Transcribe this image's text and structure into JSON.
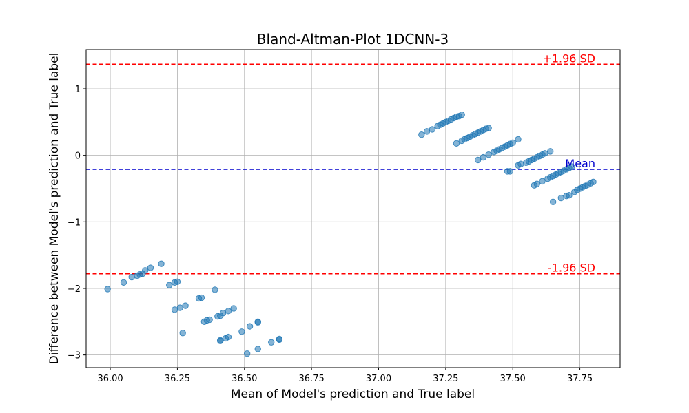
{
  "chart_data": {
    "type": "scatter",
    "title": "Bland-Altman-Plot 1DCNN-3",
    "xlabel": "Mean of Model's prediction and True label",
    "ylabel": "Difference between Model's prediction and True label",
    "xlim": [
      35.91,
      37.9
    ],
    "ylim": [
      -3.19,
      1.59
    ],
    "xticks": [
      36.0,
      36.25,
      36.5,
      36.75,
      37.0,
      37.25,
      37.5,
      37.75
    ],
    "xtick_labels": [
      "36.00",
      "36.25",
      "36.50",
      "36.75",
      "37.00",
      "37.25",
      "37.50",
      "37.75"
    ],
    "yticks": [
      -3,
      -2,
      -1,
      0,
      1
    ],
    "ytick_labels": [
      "−3",
      "−2",
      "−1",
      "0",
      "1"
    ],
    "grid": true,
    "marker_color": "#1f77b4",
    "reference_lines": [
      {
        "label": "+1.96 SD",
        "y": 1.37,
        "color": "#ff0000"
      },
      {
        "label": "Mean",
        "y": -0.21,
        "color": "#0000cd"
      },
      {
        "label": "-1.96 SD",
        "y": -1.78,
        "color": "#ff0000"
      }
    ],
    "points": [
      [
        35.99,
        -2.01
      ],
      [
        36.05,
        -1.91
      ],
      [
        36.08,
        -1.83
      ],
      [
        36.1,
        -1.81
      ],
      [
        36.11,
        -1.79
      ],
      [
        36.12,
        -1.78
      ],
      [
        36.13,
        -1.73
      ],
      [
        36.15,
        -1.69
      ],
      [
        36.19,
        -1.63
      ],
      [
        36.22,
        -1.95
      ],
      [
        36.24,
        -1.91
      ],
      [
        36.25,
        -1.9
      ],
      [
        36.24,
        -2.32
      ],
      [
        36.26,
        -2.29
      ],
      [
        36.28,
        -2.26
      ],
      [
        36.27,
        -2.67
      ],
      [
        36.33,
        -2.15
      ],
      [
        36.34,
        -2.14
      ],
      [
        36.35,
        -2.5
      ],
      [
        36.36,
        -2.48
      ],
      [
        36.37,
        -2.47
      ],
      [
        36.39,
        -2.02
      ],
      [
        36.4,
        -2.42
      ],
      [
        36.41,
        -2.41
      ],
      [
        36.42,
        -2.37
      ],
      [
        36.44,
        -2.34
      ],
      [
        36.46,
        -2.3
      ],
      [
        36.41,
        -2.79
      ],
      [
        36.41,
        -2.78
      ],
      [
        36.43,
        -2.75
      ],
      [
        36.44,
        -2.73
      ],
      [
        36.49,
        -2.65
      ],
      [
        36.51,
        -2.98
      ],
      [
        36.52,
        -2.57
      ],
      [
        36.55,
        -2.51
      ],
      [
        36.55,
        -2.5
      ],
      [
        36.55,
        -2.91
      ],
      [
        36.6,
        -2.81
      ],
      [
        36.63,
        -2.77
      ],
      [
        36.63,
        -2.76
      ],
      [
        37.16,
        0.31
      ],
      [
        37.18,
        0.36
      ],
      [
        37.2,
        0.39
      ],
      [
        37.22,
        0.44
      ],
      [
        37.23,
        0.46
      ],
      [
        37.24,
        0.48
      ],
      [
        37.25,
        0.5
      ],
      [
        37.26,
        0.52
      ],
      [
        37.27,
        0.54
      ],
      [
        37.28,
        0.56
      ],
      [
        37.29,
        0.58
      ],
      [
        37.3,
        0.59
      ],
      [
        37.31,
        0.61
      ],
      [
        37.29,
        0.18
      ],
      [
        37.31,
        0.22
      ],
      [
        37.32,
        0.24
      ],
      [
        37.33,
        0.26
      ],
      [
        37.34,
        0.28
      ],
      [
        37.35,
        0.3
      ],
      [
        37.36,
        0.32
      ],
      [
        37.37,
        0.34
      ],
      [
        37.38,
        0.36
      ],
      [
        37.39,
        0.38
      ],
      [
        37.4,
        0.4
      ],
      [
        37.41,
        0.41
      ],
      [
        37.37,
        -0.07
      ],
      [
        37.39,
        -0.03
      ],
      [
        37.41,
        0.01
      ],
      [
        37.43,
        0.05
      ],
      [
        37.44,
        0.07
      ],
      [
        37.45,
        0.09
      ],
      [
        37.46,
        0.11
      ],
      [
        37.47,
        0.13
      ],
      [
        37.48,
        0.15
      ],
      [
        37.49,
        0.17
      ],
      [
        37.5,
        0.19
      ],
      [
        37.52,
        0.24
      ],
      [
        37.48,
        -0.24
      ],
      [
        37.49,
        -0.24
      ],
      [
        37.52,
        -0.15
      ],
      [
        37.53,
        -0.13
      ],
      [
        37.55,
        -0.11
      ],
      [
        37.56,
        -0.09
      ],
      [
        37.57,
        -0.07
      ],
      [
        37.58,
        -0.05
      ],
      [
        37.59,
        -0.03
      ],
      [
        37.6,
        -0.01
      ],
      [
        37.61,
        0.01
      ],
      [
        37.62,
        0.03
      ],
      [
        37.64,
        0.06
      ],
      [
        37.58,
        -0.45
      ],
      [
        37.59,
        -0.43
      ],
      [
        37.61,
        -0.39
      ],
      [
        37.63,
        -0.35
      ],
      [
        37.64,
        -0.33
      ],
      [
        37.65,
        -0.31
      ],
      [
        37.66,
        -0.29
      ],
      [
        37.67,
        -0.27
      ],
      [
        37.68,
        -0.25
      ],
      [
        37.69,
        -0.23
      ],
      [
        37.7,
        -0.21
      ],
      [
        37.71,
        -0.19
      ],
      [
        37.72,
        -0.17
      ],
      [
        37.65,
        -0.7
      ],
      [
        37.68,
        -0.64
      ],
      [
        37.7,
        -0.61
      ],
      [
        37.71,
        -0.6
      ],
      [
        37.73,
        -0.55
      ],
      [
        37.74,
        -0.52
      ],
      [
        37.75,
        -0.5
      ],
      [
        37.76,
        -0.48
      ],
      [
        37.77,
        -0.46
      ],
      [
        37.78,
        -0.44
      ],
      [
        37.79,
        -0.42
      ],
      [
        37.8,
        -0.4
      ]
    ]
  }
}
